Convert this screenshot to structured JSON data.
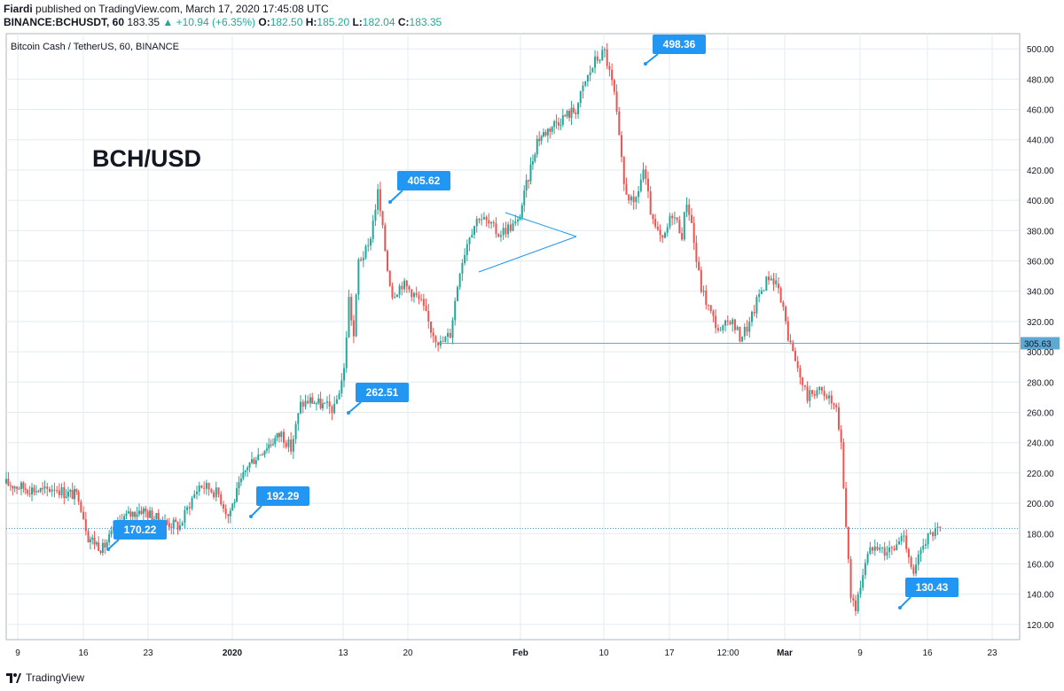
{
  "header": {
    "author": "Fiardi",
    "published_text": "published on TradingView.com, March 17, 2020 17:45:08 UTC",
    "symbol": "BINANCE:BCHUSDT, 60",
    "last": "183.35",
    "change": "▲ +10.94 (+6.35%)",
    "o_label": "O:",
    "o_val": "182.50",
    "h_label": "H:",
    "h_val": "185.20",
    "l_label": "L:",
    "l_val": "182.04",
    "c_label": "C:",
    "c_val": "183.35"
  },
  "footer": {
    "brand": "TradingView"
  },
  "colors": {
    "up": "#26a69a",
    "down": "#ef5350",
    "callout": "#2196f3",
    "hline": "#5fa8d3",
    "grid": "#e1ecf2",
    "axis_text": "#131722",
    "price_tag": "#5fa8d3"
  },
  "chart_data": {
    "type": "line",
    "title": "Bitcoin Cash / TetherUS, 60, BINANCE",
    "annotation_title": "BCH/USD",
    "xlabel": "",
    "ylabel": "",
    "ylim": [
      110,
      510
    ],
    "y_ticks": [
      "120.00",
      "140.00",
      "160.00",
      "180.00",
      "200.00",
      "220.00",
      "240.00",
      "260.00",
      "280.00",
      "300.00",
      "320.00",
      "340.00",
      "360.00",
      "380.00",
      "400.00",
      "420.00",
      "440.00",
      "460.00",
      "480.00",
      "500.00"
    ],
    "x_ticks": [
      "9",
      "16",
      "23",
      "2020",
      "13",
      "20",
      "Feb",
      "10",
      "17",
      "12:00",
      "Mar",
      "9",
      "16",
      "23"
    ],
    "grid": true,
    "horizontal_lines": [
      {
        "price": 305.63,
        "label": "305.63"
      },
      {
        "price": 183.35,
        "style": "dotted"
      }
    ],
    "callouts": [
      "170.22",
      "192.29",
      "262.51",
      "405.62",
      "498.36",
      "130.43"
    ],
    "series": [
      {
        "x": [
          0,
          4,
          8,
          10,
          12,
          15,
          17,
          20,
          24,
          28,
          32,
          36,
          38,
          40,
          42,
          44,
          46,
          50,
          54,
          57,
          59,
          61,
          63,
          66,
          68,
          70,
          71,
          72,
          73,
          75,
          77,
          79,
          80,
          82,
          84,
          86,
          88,
          90,
          92,
          94,
          96,
          98,
          100,
          102,
          104,
          106,
          110,
          114,
          118,
          120,
          122,
          124,
          126,
          128,
          130,
          132,
          134,
          136,
          138,
          140,
          141,
          142,
          143,
          144,
          146,
          148,
          150,
          152,
          154,
          156,
          158,
          160
        ],
        "values": [
          213,
          210,
          208,
          211,
          207,
          205,
          178,
          170,
          190,
          196,
          188,
          185,
          200,
          212,
          210,
          206,
          192,
          225,
          238,
          246,
          236,
          265,
          268,
          264,
          262,
          288,
          335,
          310,
          360,
          368,
          405,
          355,
          338,
          345,
          340,
          332,
          315,
          305,
          312,
          355,
          378,
          390,
          384,
          378,
          382,
          385,
          440,
          452,
          460,
          478,
          492,
          498,
          470,
          410,
          395,
          420,
          384,
          372,
          392,
          378,
          400,
          385,
          360,
          342,
          325,
          312,
          322,
          310,
          318,
          338,
          350,
          345
        ]
      },
      {
        "x": [
          160,
          162,
          164,
          166,
          168,
          170,
          172,
          173,
          174,
          175,
          176,
          178,
          180,
          182,
          184,
          186,
          188,
          190,
          192,
          194
        ],
        "values": [
          345,
          310,
          288,
          270,
          275,
          272,
          260,
          238,
          185,
          140,
          130,
          162,
          175,
          168,
          170,
          180,
          152,
          175,
          180,
          183
        ]
      }
    ]
  }
}
